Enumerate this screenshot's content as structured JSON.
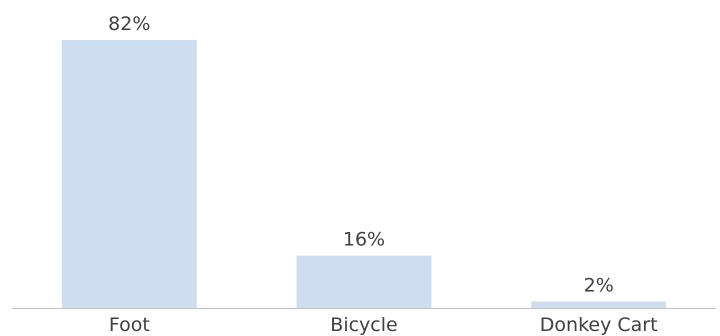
{
  "chart_data": {
    "type": "bar",
    "categories": [
      "Foot",
      "Bicycle",
      "Donkey Cart"
    ],
    "values": [
      82,
      16,
      2
    ],
    "data_labels": [
      "82%",
      "16%",
      "2%"
    ],
    "unit": "%",
    "ylim": [
      0,
      82
    ],
    "grid": false,
    "legend": "none",
    "colors": {
      "bar": "#cfddf0",
      "axis": "#bfbfbf",
      "text": "#404040"
    }
  }
}
